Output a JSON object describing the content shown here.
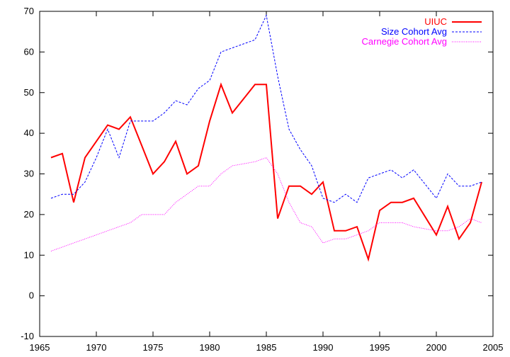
{
  "chart_data": {
    "type": "line",
    "title": "",
    "xlabel": "",
    "ylabel": "",
    "xlim": [
      1965,
      2005
    ],
    "ylim": [
      -10,
      70
    ],
    "xticks": [
      1965,
      1970,
      1975,
      1980,
      1985,
      1990,
      1995,
      2000,
      2005
    ],
    "yticks": [
      -10,
      0,
      10,
      20,
      30,
      40,
      50,
      60,
      70
    ],
    "grid": false,
    "legend_position": "top-right",
    "series": [
      {
        "name": "UIUC",
        "color": "#ff0000",
        "line_style": "solid",
        "x": [
          1966,
          1967,
          1968,
          1969,
          1970,
          1971,
          1972,
          1973,
          1974,
          1975,
          1976,
          1977,
          1978,
          1979,
          1980,
          1981,
          1982,
          1983,
          1984,
          1985,
          1986,
          1987,
          1988,
          1989,
          1990,
          1991,
          1992,
          1993,
          1994,
          1995,
          1996,
          1997,
          1998,
          1999,
          2000,
          2001,
          2002,
          2003,
          2004
        ],
        "values": [
          34,
          35,
          23,
          34,
          38,
          42,
          41,
          44,
          37,
          30,
          33,
          38,
          30,
          32,
          43,
          52,
          45,
          48.5,
          52,
          52,
          19,
          27,
          27,
          25,
          28,
          16,
          16,
          17,
          9,
          21,
          23,
          23,
          24,
          19.5,
          15,
          22,
          14,
          18,
          28
        ]
      },
      {
        "name": "Size Cohort Avg",
        "color": "#0000ff",
        "line_style": "dashed",
        "x": [
          1966,
          1967,
          1968,
          1969,
          1970,
          1971,
          1972,
          1973,
          1974,
          1975,
          1976,
          1977,
          1978,
          1979,
          1980,
          1981,
          1982,
          1983,
          1984,
          1985,
          1986,
          1987,
          1988,
          1989,
          1990,
          1991,
          1992,
          1993,
          1994,
          1995,
          1996,
          1997,
          1998,
          1999,
          2000,
          2001,
          2002,
          2003,
          2004
        ],
        "values": [
          24,
          25,
          25,
          28,
          34,
          41,
          34,
          43,
          43,
          43,
          45,
          48,
          47,
          51,
          53,
          60,
          61,
          62,
          63,
          69,
          54,
          41,
          36,
          32,
          24,
          23,
          25,
          23,
          29,
          30,
          31,
          29,
          31,
          27.5,
          24,
          30,
          27,
          27,
          28
        ]
      },
      {
        "name": "Carnegie Cohort Avg",
        "color": "#ff00ff",
        "line_style": "dotted",
        "x": [
          1966,
          1967,
          1968,
          1969,
          1970,
          1971,
          1972,
          1973,
          1974,
          1975,
          1976,
          1977,
          1978,
          1979,
          1980,
          1981,
          1982,
          1983,
          1984,
          1985,
          1986,
          1987,
          1988,
          1989,
          1990,
          1991,
          1992,
          1993,
          1994,
          1995,
          1996,
          1997,
          1998,
          1999,
          2000,
          2001,
          2002,
          2003,
          2004
        ],
        "values": [
          11,
          12,
          13,
          14,
          15,
          16,
          17,
          18,
          20,
          20,
          20,
          23,
          25,
          27,
          27,
          30,
          32,
          32.5,
          33,
          34,
          30,
          23,
          18,
          17,
          13,
          14,
          14,
          15,
          16,
          18,
          18,
          18,
          17,
          16.5,
          16,
          16,
          17,
          19,
          18
        ]
      }
    ]
  }
}
